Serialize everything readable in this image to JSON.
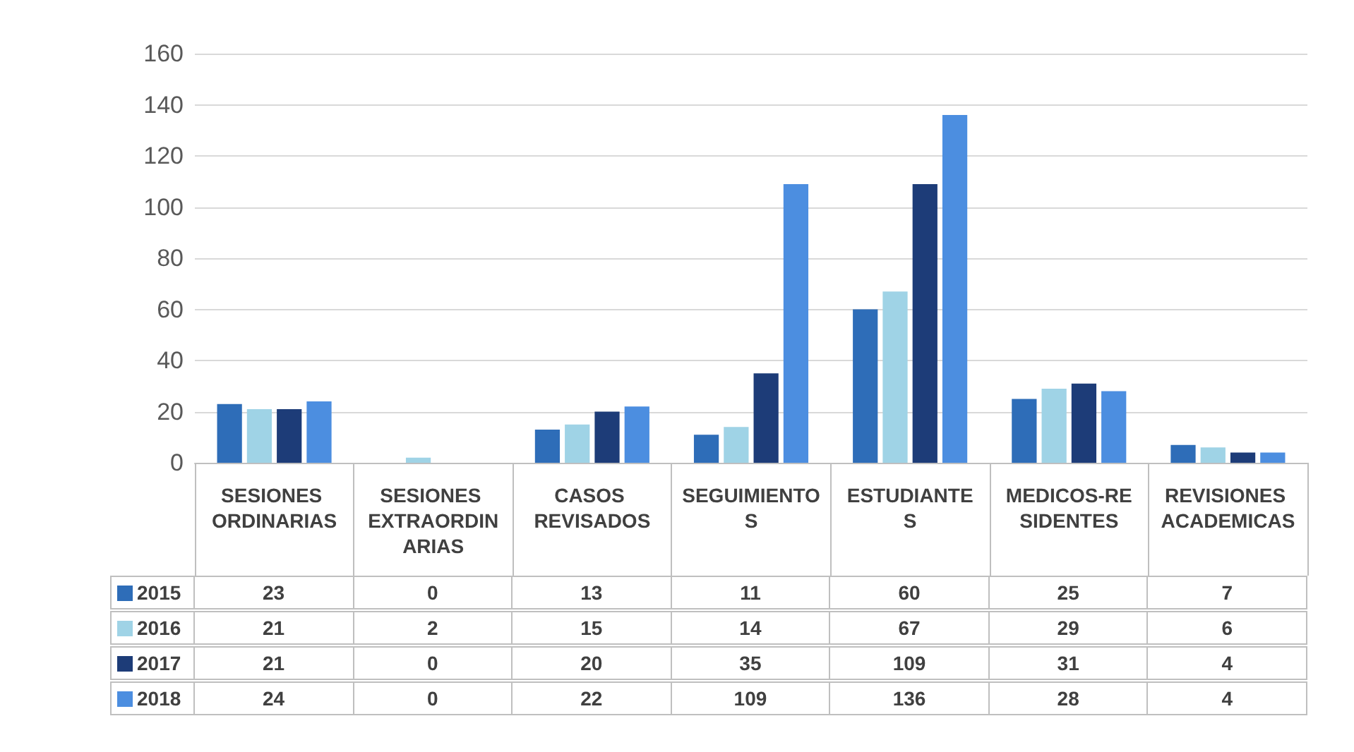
{
  "chart_data": {
    "type": "bar",
    "categories": [
      "SESIONES ORDINARIAS",
      "SESIONES EXTRAORDINARIAS",
      "CASOS REVISADOS",
      "SEGUIMIENTOS",
      "ESTUDIANTES",
      "MEDICOS-RESIDENTES",
      "REVISIONES ACADEMICAS"
    ],
    "series": [
      {
        "name": "2015",
        "color": "#2e6db8",
        "values": [
          23,
          0,
          13,
          11,
          60,
          25,
          7
        ]
      },
      {
        "name": "2016",
        "color": "#9fd3e6",
        "values": [
          21,
          2,
          15,
          14,
          67,
          29,
          6
        ]
      },
      {
        "name": "2017",
        "color": "#1d3c78",
        "values": [
          21,
          0,
          20,
          35,
          109,
          31,
          4
        ]
      },
      {
        "name": "2018",
        "color": "#4c8ee0",
        "values": [
          24,
          0,
          22,
          109,
          136,
          28,
          4
        ]
      }
    ],
    "ylim": [
      0,
      160
    ],
    "yticks": [
      0,
      20,
      40,
      60,
      80,
      100,
      120,
      140,
      160
    ],
    "grid": "y",
    "legend": "bottom",
    "data_labels": true
  }
}
